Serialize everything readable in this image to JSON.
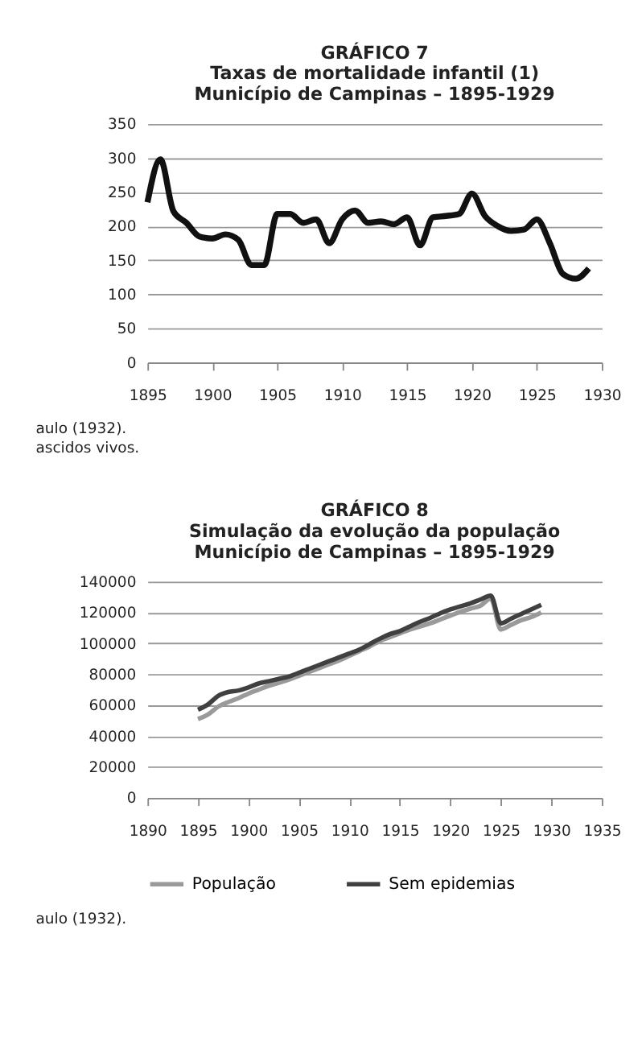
{
  "chart_data": [
    {
      "type": "line",
      "title": "GRÁFICO 7",
      "subtitle": "Taxas de mortalidade infantil (1)\nMunicípio de Campinas – 1895-1929",
      "x": [
        1895,
        1896,
        1897,
        1898,
        1899,
        1900,
        1901,
        1902,
        1903,
        1904,
        1905,
        1906,
        1907,
        1908,
        1909,
        1910,
        1911,
        1912,
        1913,
        1914,
        1915,
        1916,
        1917,
        1918,
        1919,
        1920,
        1921,
        1922,
        1923,
        1924,
        1925,
        1926,
        1927,
        1928,
        1929
      ],
      "series": [
        {
          "color": "#111111",
          "values": [
            235,
            298,
            222,
            205,
            185,
            182,
            188,
            180,
            143,
            143,
            218,
            218,
            205,
            210,
            175,
            210,
            223,
            205,
            207,
            203,
            213,
            172,
            213,
            215,
            218,
            248,
            215,
            200,
            193,
            195,
            210,
            175,
            130,
            123,
            138
          ]
        }
      ],
      "xlim": [
        1895,
        1930
      ],
      "xticks": [
        1895,
        1900,
        1905,
        1910,
        1915,
        1920,
        1925,
        1930
      ],
      "ylim": [
        0,
        350
      ],
      "yticks": [
        0,
        50,
        100,
        150,
        200,
        250,
        300,
        350
      ],
      "grid": "y",
      "legend": false,
      "marker": "none",
      "line_style": "solid",
      "annotations": [
        "aulo (1932).",
        "ascidos vivos."
      ]
    },
    {
      "type": "line",
      "title": "GRÁFICO 8",
      "subtitle": "Simulação da evolução da população\nMunicípio de Campinas – 1895-1929",
      "x": [
        1895,
        1896,
        1897,
        1898,
        1899,
        1900,
        1901,
        1902,
        1903,
        1904,
        1905,
        1906,
        1907,
        1908,
        1909,
        1910,
        1911,
        1912,
        1913,
        1914,
        1915,
        1916,
        1917,
        1918,
        1919,
        1920,
        1921,
        1922,
        1923,
        1924,
        1925,
        1926,
        1927,
        1928,
        1929
      ],
      "series": [
        {
          "name": "População",
          "color": "#9a9a9a",
          "values": [
            51000,
            54000,
            59000,
            62000,
            64500,
            67500,
            70000,
            72500,
            74500,
            76500,
            79000,
            81500,
            84000,
            86500,
            89000,
            92000,
            95000,
            98000,
            101500,
            104000,
            106500,
            109000,
            111000,
            113000,
            115500,
            118000,
            120500,
            122500,
            124500,
            129000,
            109000,
            112000,
            115000,
            117000,
            120000
          ]
        },
        {
          "name": "Sem epidemias",
          "color": "#404040",
          "values": [
            57000,
            60500,
            66000,
            68500,
            69500,
            71500,
            74000,
            75500,
            77000,
            78500,
            81000,
            83500,
            86000,
            88500,
            91000,
            93500,
            96000,
            99500,
            103000,
            106000,
            108000,
            111000,
            114000,
            116500,
            119500,
            122000,
            124000,
            126000,
            128500,
            131000,
            113000,
            116000,
            119000,
            122000,
            125000
          ]
        }
      ],
      "xlim": [
        1890,
        1935
      ],
      "xticks": [
        1890,
        1895,
        1900,
        1905,
        1910,
        1915,
        1920,
        1925,
        1930,
        1935
      ],
      "ylim": [
        0,
        140000
      ],
      "yticks": [
        0,
        20000,
        40000,
        60000,
        80000,
        100000,
        120000,
        140000
      ],
      "grid": "y",
      "legend": "bottom",
      "marker": "none",
      "line_style": "solid",
      "annotations": [
        "aulo (1932)."
      ]
    }
  ]
}
